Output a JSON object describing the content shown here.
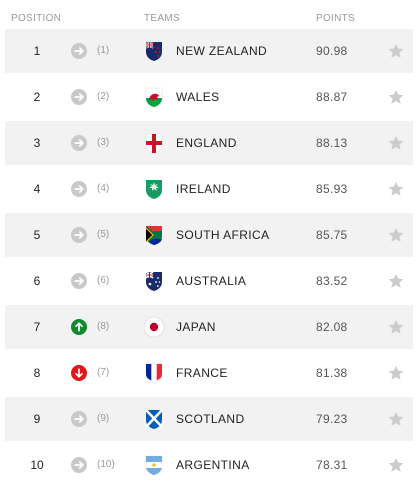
{
  "header": {
    "position_label": "POSITION",
    "teams_label": "TEAMS",
    "points_label": "POINTS"
  },
  "colors": {
    "same": "#c9c9c9",
    "up": "#0f8a2c",
    "down": "#e3141b",
    "star": "#cccccc",
    "row_shade": "#f2f2f2"
  },
  "rows": [
    {
      "position": "1",
      "movement": "same",
      "previous": "(1)",
      "team": "NEW ZEALAND",
      "flag": "new-zealand-flag-icon",
      "points": "90.98"
    },
    {
      "position": "2",
      "movement": "same",
      "previous": "(2)",
      "team": "WALES",
      "flag": "wales-flag-icon",
      "points": "88.87"
    },
    {
      "position": "3",
      "movement": "same",
      "previous": "(3)",
      "team": "ENGLAND",
      "flag": "england-flag-icon",
      "points": "88.13"
    },
    {
      "position": "4",
      "movement": "same",
      "previous": "(4)",
      "team": "IRELAND",
      "flag": "ireland-flag-icon",
      "points": "85.93"
    },
    {
      "position": "5",
      "movement": "same",
      "previous": "(5)",
      "team": "SOUTH AFRICA",
      "flag": "south-africa-flag-icon",
      "points": "85.75"
    },
    {
      "position": "6",
      "movement": "same",
      "previous": "(6)",
      "team": "AUSTRALIA",
      "flag": "australia-flag-icon",
      "points": "83.52"
    },
    {
      "position": "7",
      "movement": "up",
      "previous": "(8)",
      "team": "JAPAN",
      "flag": "japan-flag-icon",
      "points": "82.08"
    },
    {
      "position": "8",
      "movement": "down",
      "previous": "(7)",
      "team": "FRANCE",
      "flag": "france-flag-icon",
      "points": "81.38"
    },
    {
      "position": "9",
      "movement": "same",
      "previous": "(9)",
      "team": "SCOTLAND",
      "flag": "scotland-flag-icon",
      "points": "79.23"
    },
    {
      "position": "10",
      "movement": "same",
      "previous": "(10)",
      "team": "ARGENTINA",
      "flag": "argentina-flag-icon",
      "points": "78.31"
    }
  ]
}
